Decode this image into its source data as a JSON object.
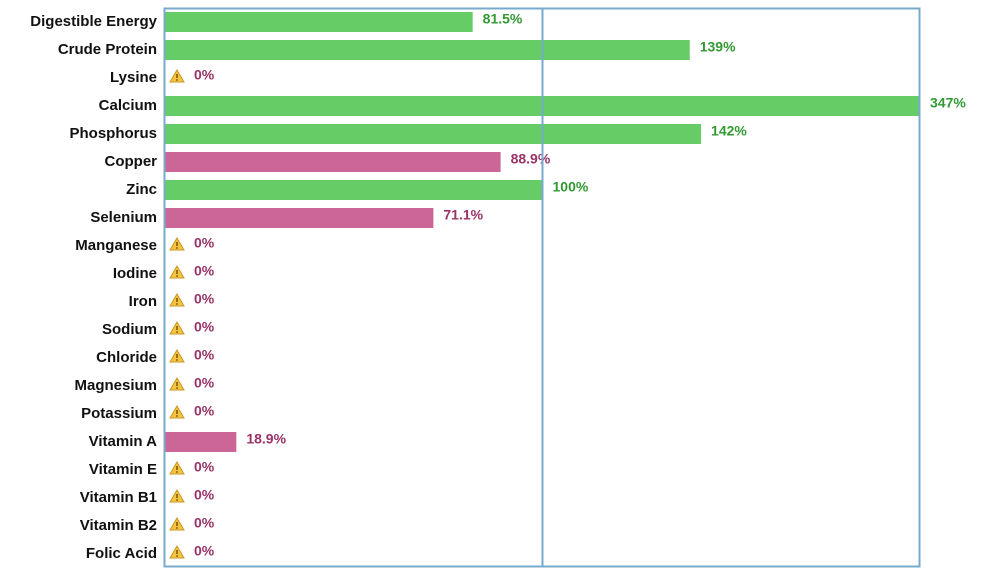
{
  "chart_data": {
    "type": "hbar",
    "categories": [
      "Digestible Energy",
      "Crude Protein",
      "Lysine",
      "Calcium",
      "Phosphorus",
      "Copper",
      "Zinc",
      "Selenium",
      "Manganese",
      "Iodine",
      "Iron",
      "Sodium",
      "Chloride",
      "Magnesium",
      "Potassium",
      "Vitamin A",
      "Vitamin E",
      "Vitamin B1",
      "Vitamin B2",
      "Folic Acid"
    ],
    "values": [
      81.5,
      139,
      0,
      347,
      142,
      88.9,
      100,
      71.1,
      0,
      0,
      0,
      0,
      0,
      0,
      0,
      18.9,
      0,
      0,
      0,
      0
    ],
    "value_labels": [
      "81.5%",
      "139%",
      "0%",
      "347%",
      "142%",
      "88.9%",
      "100%",
      "71.1%",
      "0%",
      "0%",
      "0%",
      "0%",
      "0%",
      "0%",
      "0%",
      "18.9%",
      "0%",
      "0%",
      "0%",
      "0%"
    ],
    "colors": [
      "#66cc66",
      "#66cc66",
      "#cc6699",
      "#66cc66",
      "#66cc66",
      "#cc6699",
      "#66cc66",
      "#cc6699",
      "#cc6699",
      "#cc6699",
      "#cc6699",
      "#cc6699",
      "#cc6699",
      "#cc6699",
      "#cc6699",
      "#cc6699",
      "#cc6699",
      "#cc6699",
      "#cc6699",
      "#cc6699"
    ],
    "label_colors": [
      "#339933",
      "#339933",
      "#993366",
      "#339933",
      "#339933",
      "#993366",
      "#339933",
      "#993366",
      "#993366",
      "#993366",
      "#993366",
      "#993366",
      "#993366",
      "#993366",
      "#993366",
      "#993366",
      "#993366",
      "#993366",
      "#993366",
      "#993366"
    ],
    "xlim": [
      0,
      200
    ],
    "reference_line": 100
  }
}
